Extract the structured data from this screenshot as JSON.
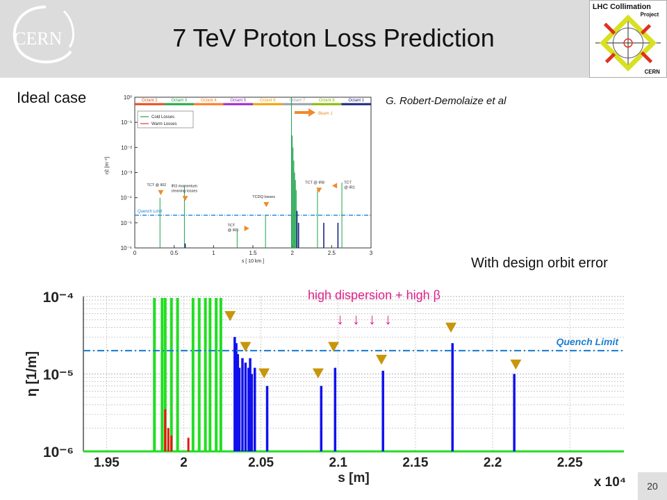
{
  "slide": {
    "title": "7 TeV Proton Loss Prediction",
    "ideal_label": "Ideal case",
    "author": "G. Robert-Demolaize et al",
    "orbit_label": "With design orbit error",
    "page_number": "20",
    "cern_logo_text": "CERN",
    "project_logo": {
      "line1": "LHC Collimation",
      "line2": "Project",
      "line3": "CERN"
    }
  },
  "chart_data": [
    {
      "type": "bar",
      "title": "",
      "xlabel": "s [ 10 km ]",
      "ylabel": "η̃c [m⁻¹]",
      "xlim": [
        0,
        3
      ],
      "ylim": [
        1e-06,
        1
      ],
      "yscale": "log",
      "x_ticks": [
        "0",
        "0.5",
        "1",
        "1.5",
        "2",
        "2.5",
        "3"
      ],
      "y_ticks": [
        "10⁰",
        "10⁻¹",
        "10⁻²",
        "10⁻³",
        "10⁻⁴",
        "10⁻⁵",
        "10⁻⁶"
      ],
      "octants": [
        "Octant 2",
        "Octant 3",
        "Octant 4",
        "Octant 5",
        "Octant 6",
        "Octant 7",
        "Octant 8",
        "Octant 1"
      ],
      "octant_colors": [
        "#e64a19",
        "#21a645",
        "#ff7a1a",
        "#9b27c7",
        "#f0a000",
        "#9aa0a8",
        "#8ab800",
        "#1a237e"
      ],
      "beam_label": "Beam 1",
      "legend": [
        "Cold Losses",
        "Warm Losses"
      ],
      "legend_position": "top-left",
      "series_colors": {
        "cold": "#1aa34a",
        "warm": "#e53935",
        "quench": "#1e7fd0"
      },
      "quench_limit": {
        "label": "Quench Limit",
        "value": 2e-05
      },
      "annotations": [
        {
          "text": [
            "TCT @ IR2"
          ],
          "x": 0.33,
          "y": 0.00012
        },
        {
          "text": [
            "IR3 momentum",
            "cleaning losses"
          ],
          "x": 0.64,
          "y": 7e-05
        },
        {
          "text": [
            "TCDQ losses"
          ],
          "x": 1.67,
          "y": 4e-05
        },
        {
          "text": [
            "TCT",
            "@ IR5"
          ],
          "x": 1.32,
          "y": 6e-06
        },
        {
          "text": [
            "TCT @ IR8"
          ],
          "x": 2.34,
          "y": 0.00015
        },
        {
          "text": [
            "TCT",
            "@ IR1"
          ],
          "x": 2.64,
          "y": 0.0003
        }
      ],
      "loss_spikes": [
        {
          "x": 0.32,
          "y": 0.0001,
          "kind": "cold"
        },
        {
          "x": 0.63,
          "y": 0.0003,
          "kind": "cold"
        },
        {
          "x": 0.64,
          "y": 1.5e-06,
          "kind": "dark"
        },
        {
          "x": 1.3,
          "y": 5e-06,
          "kind": "cold"
        },
        {
          "x": 1.66,
          "y": 2e-05,
          "kind": "cold"
        },
        {
          "x": 1.99,
          "y": 1.5,
          "kind": "cold"
        },
        {
          "x": 2.0,
          "y": 0.03,
          "kind": "cold"
        },
        {
          "x": 2.01,
          "y": 0.01,
          "kind": "cold"
        },
        {
          "x": 2.02,
          "y": 0.003,
          "kind": "cold"
        },
        {
          "x": 2.03,
          "y": 0.001,
          "kind": "cold"
        },
        {
          "x": 2.04,
          "y": 0.0005,
          "kind": "cold"
        },
        {
          "x": 2.05,
          "y": 0.0002,
          "kind": "cold"
        },
        {
          "x": 2.06,
          "y": 3e-05,
          "kind": "dark"
        },
        {
          "x": 2.08,
          "y": 1e-05,
          "kind": "dark"
        },
        {
          "x": 2.32,
          "y": 0.0002,
          "kind": "cold"
        },
        {
          "x": 2.4,
          "y": 1e-05,
          "kind": "dark"
        },
        {
          "x": 2.58,
          "y": 1e-05,
          "kind": "dark"
        },
        {
          "x": 2.63,
          "y": 0.0004,
          "kind": "cold"
        }
      ]
    },
    {
      "type": "bar",
      "title": "",
      "xlabel": "s [m]",
      "x_multiplier": "x 10⁴",
      "ylabel": "η [1/m]",
      "xlim": [
        1.935,
        2.285
      ],
      "ylim": [
        1e-06,
        0.0001
      ],
      "yscale": "log",
      "x_ticks": [
        "1.95",
        "2",
        "2.05",
        "2.1",
        "2.15",
        "2.2",
        "2.25"
      ],
      "y_ticks": [
        "10⁻⁴",
        "10⁻⁵",
        "10⁻⁶"
      ],
      "quench_limit": {
        "label": "Quench Limit",
        "value": 2e-05
      },
      "annotation": "high dispersion + high β",
      "annotation_arrows": 4,
      "series_colors": {
        "green": "#22dd22",
        "red": "#ee1111",
        "blue": "#1111ee",
        "quench": "#1e7fd0",
        "markers": "#c8960a"
      },
      "green_spikes": [
        1.981,
        1.986,
        1.988,
        1.992,
        1.996,
        2.006,
        2.01,
        2.014,
        2.017,
        2.021,
        2.024
      ],
      "red_spikes": [
        {
          "x": 1.988,
          "y": 3.5e-06
        },
        {
          "x": 1.99,
          "y": 2e-06
        },
        {
          "x": 1.992,
          "y": 1.6e-06
        },
        {
          "x": 2.003,
          "y": 1.5e-06
        }
      ],
      "blue_spikes": [
        {
          "x": 2.033,
          "y": 3e-05
        },
        {
          "x": 2.034,
          "y": 2.5e-05
        },
        {
          "x": 2.035,
          "y": 1.8e-05
        },
        {
          "x": 2.036,
          "y": 1.2e-05
        },
        {
          "x": 2.038,
          "y": 1.6e-05
        },
        {
          "x": 2.04,
          "y": 1.4e-05
        },
        {
          "x": 2.042,
          "y": 1.2e-05
        },
        {
          "x": 2.043,
          "y": 1.6e-05
        },
        {
          "x": 2.044,
          "y": 1e-05
        },
        {
          "x": 2.046,
          "y": 1.2e-05
        },
        {
          "x": 2.054,
          "y": 7e-06
        },
        {
          "x": 2.089,
          "y": 7e-06
        },
        {
          "x": 2.098,
          "y": 1.2e-05
        },
        {
          "x": 2.129,
          "y": 1.1e-05
        },
        {
          "x": 2.174,
          "y": 2.5e-05
        },
        {
          "x": 2.214,
          "y": 1e-05
        }
      ],
      "markers": [
        {
          "x": 2.03,
          "y": 5.5e-05
        },
        {
          "x": 2.04,
          "y": 2.2e-05
        },
        {
          "x": 2.052,
          "y": 1e-05
        },
        {
          "x": 2.087,
          "y": 1e-05
        },
        {
          "x": 2.097,
          "y": 2.2e-05
        },
        {
          "x": 2.128,
          "y": 1.5e-05
        },
        {
          "x": 2.173,
          "y": 3.9e-05
        },
        {
          "x": 2.215,
          "y": 1.3e-05
        }
      ]
    }
  ]
}
